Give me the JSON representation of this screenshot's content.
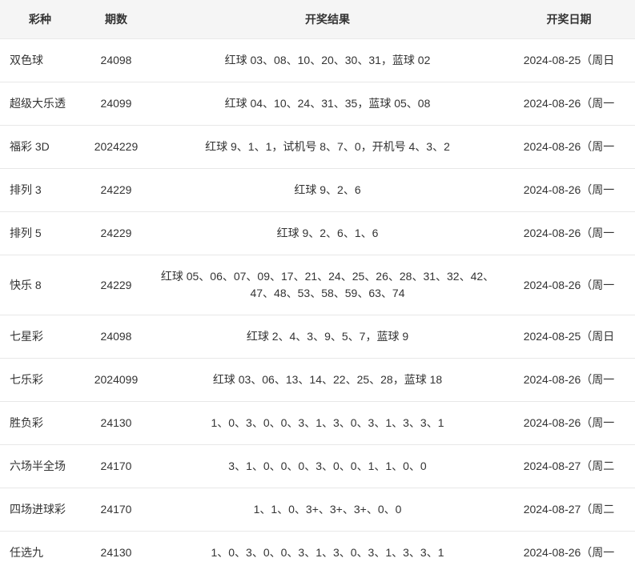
{
  "headers": {
    "type": "彩种",
    "issue": "期数",
    "result": "开奖结果",
    "date": "开奖日期"
  },
  "rows": [
    {
      "type": "双色球",
      "issue": "24098",
      "result": "红球 03、08、10、20、30、31，蓝球 02",
      "date": "2024-08-25（周日"
    },
    {
      "type": "超级大乐透",
      "issue": "24099",
      "result": "红球 04、10、24、31、35，蓝球 05、08",
      "date": "2024-08-26（周一"
    },
    {
      "type": "福彩 3D",
      "issue": "2024229",
      "result": "红球 9、1、1，试机号 8、7、0，开机号 4、3、2",
      "date": "2024-08-26（周一"
    },
    {
      "type": "排列 3",
      "issue": "24229",
      "result": "红球 9、2、6",
      "date": "2024-08-26（周一"
    },
    {
      "type": "排列 5",
      "issue": "24229",
      "result": "红球 9、2、6、1、6",
      "date": "2024-08-26（周一"
    },
    {
      "type": "快乐 8",
      "issue": "24229",
      "result": "红球 05、06、07、09、17、21、24、25、26、28、31、32、42、47、48、53、58、59、63、74",
      "date": "2024-08-26（周一"
    },
    {
      "type": "七星彩",
      "issue": "24098",
      "result": "红球 2、4、3、9、5、7，蓝球 9",
      "date": "2024-08-25（周日"
    },
    {
      "type": "七乐彩",
      "issue": "2024099",
      "result": "红球 03、06、13、14、22、25、28，蓝球 18",
      "date": "2024-08-26（周一"
    },
    {
      "type": "胜负彩",
      "issue": "24130",
      "result": "1、0、3、0、0、3、1、3、0、3、1、3、3、1",
      "date": "2024-08-26（周一"
    },
    {
      "type": "六场半全场",
      "issue": "24170",
      "result": "3、1、0、0、0、3、0、0、1、1、0、0",
      "date": "2024-08-27（周二"
    },
    {
      "type": "四场进球彩",
      "issue": "24170",
      "result": "1、1、0、3+、3+、3+、0、0",
      "date": "2024-08-27（周二"
    },
    {
      "type": "任选九",
      "issue": "24130",
      "result": "1、0、3、0、0、3、1、3、0、3、1、3、3、1",
      "date": "2024-08-26（周一"
    }
  ]
}
